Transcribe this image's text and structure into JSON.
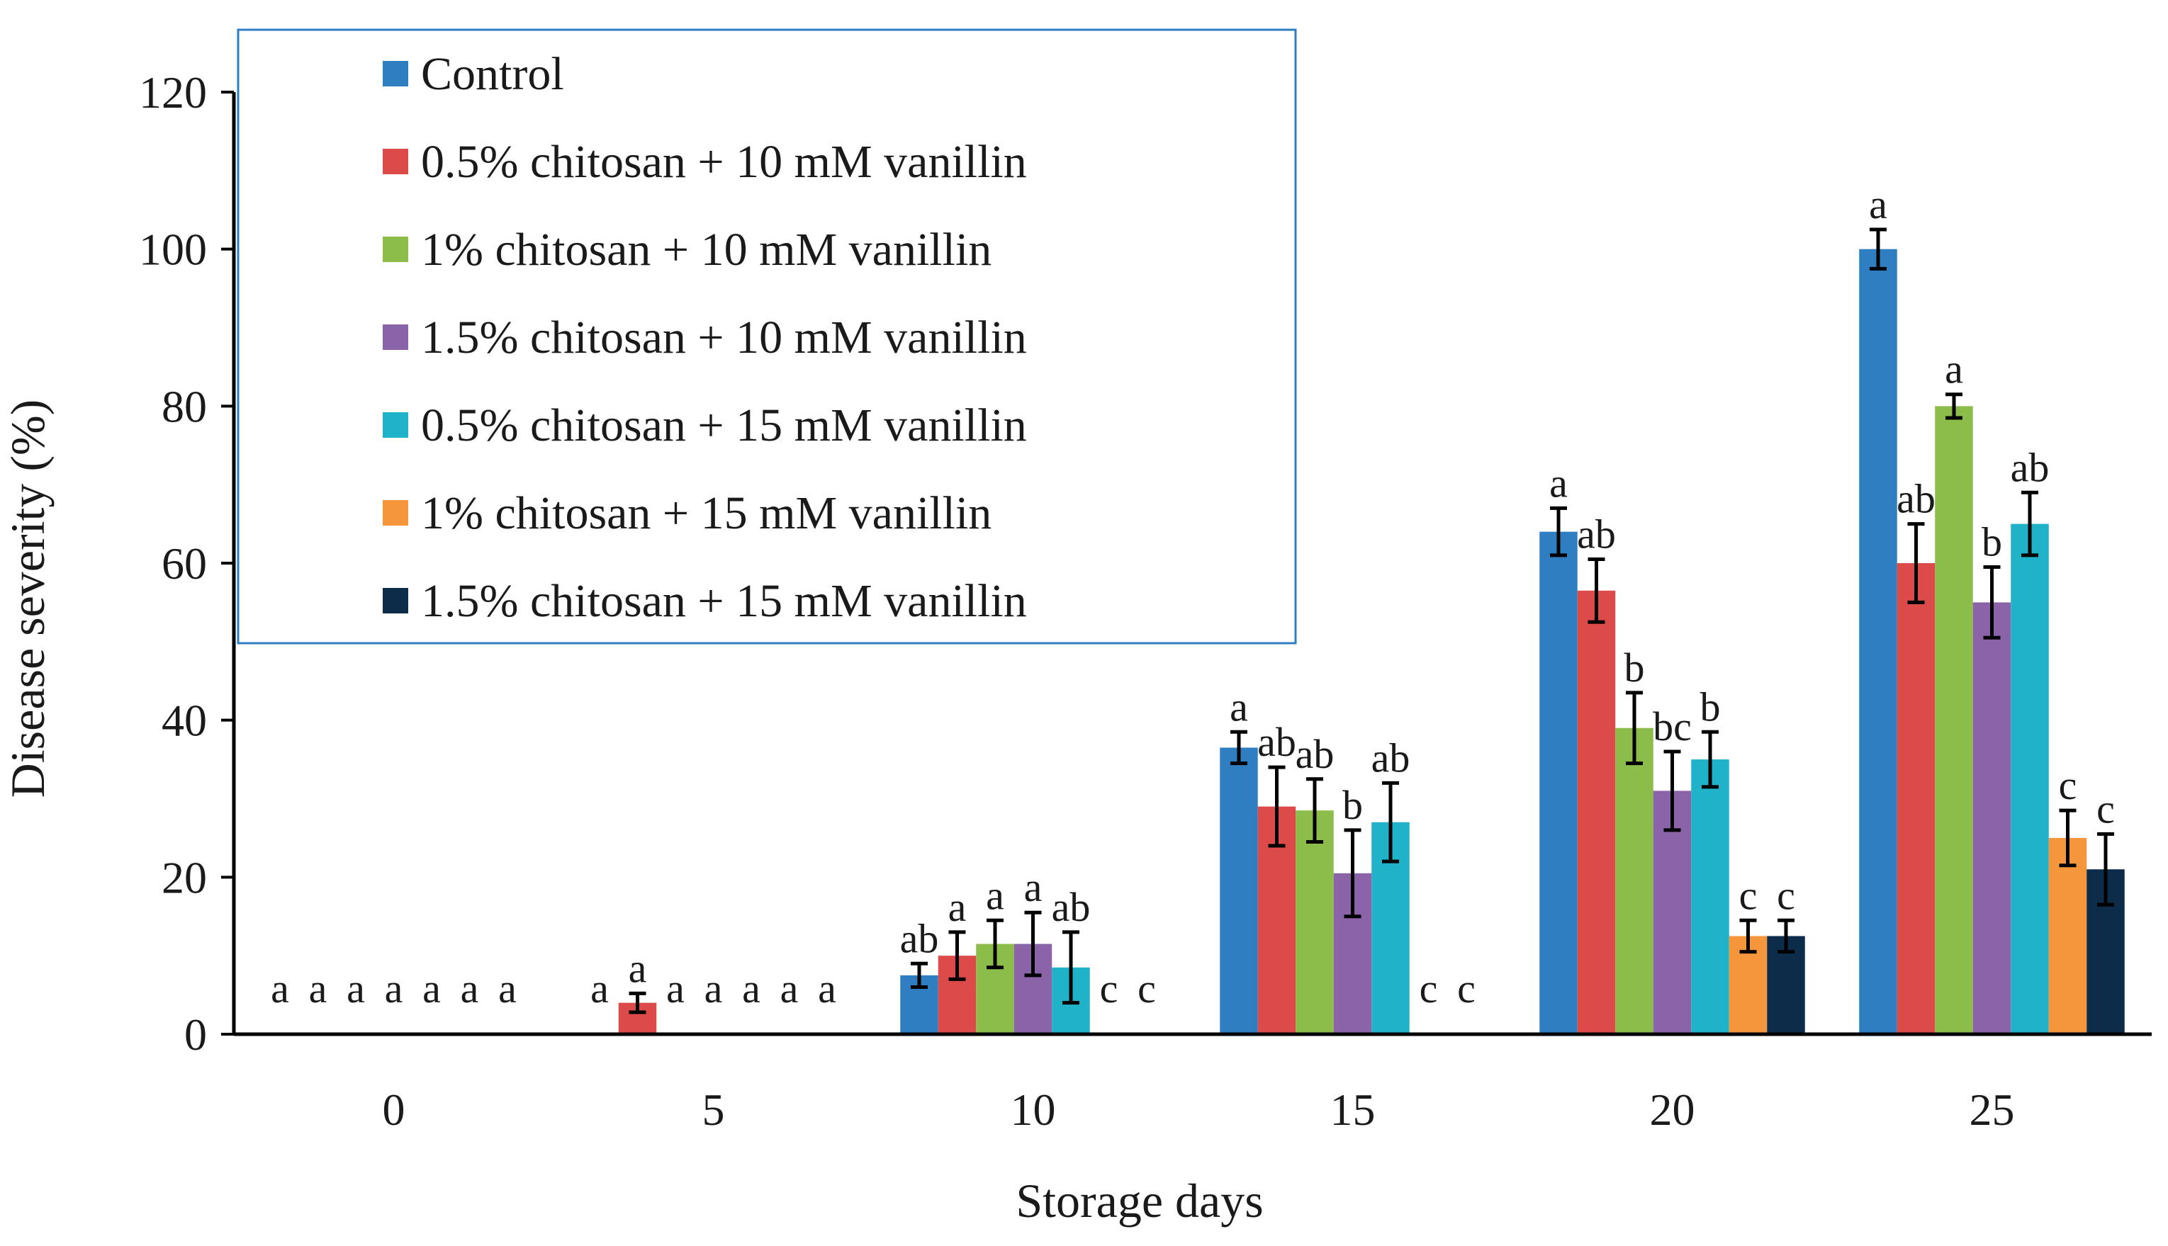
{
  "chart_data": {
    "type": "bar",
    "title": "",
    "xlabel": "Storage days",
    "ylabel": "Disease severity (%)",
    "ylim": [
      0,
      120
    ],
    "yticks": [
      "0",
      "20",
      "40",
      "60",
      "80",
      "100",
      "120"
    ],
    "categories": [
      "0",
      "5",
      "10",
      "15",
      "20",
      "25"
    ],
    "legend_position": "top-left",
    "grid": false,
    "series": [
      {
        "name": "Control",
        "color": "#2e7ec1",
        "values": [
          0,
          0,
          7.5,
          36.5,
          64,
          100
        ],
        "errors": [
          0,
          0,
          1.5,
          2,
          3,
          2.5
        ],
        "letters": [
          "a",
          "a",
          "ab",
          "a",
          "a",
          "a"
        ]
      },
      {
        "name": "0.5% chitosan + 10 mM vanillin",
        "color": "#dc4a4a",
        "values": [
          0,
          4,
          10,
          29,
          56.5,
          60
        ],
        "errors": [
          0,
          1.2,
          3,
          5,
          4,
          5
        ],
        "letters": [
          "a",
          "a",
          "a",
          "ab",
          "ab",
          "ab"
        ]
      },
      {
        "name": "1% chitosan + 10 mM vanillin",
        "color": "#8cbd4b",
        "values": [
          0,
          0,
          11.5,
          28.5,
          39,
          80
        ],
        "errors": [
          0,
          0,
          3,
          4,
          4.5,
          1.5
        ],
        "letters": [
          "a",
          "a",
          "a",
          "ab",
          "b",
          "a"
        ]
      },
      {
        "name": "1.5% chitosan + 10 mM vanillin",
        "color": "#8a63a8",
        "values": [
          0,
          0,
          11.5,
          20.5,
          31,
          55
        ],
        "errors": [
          0,
          0,
          4,
          5.5,
          5,
          4.5
        ],
        "letters": [
          "a",
          "a",
          "a",
          "b",
          "bc",
          "b"
        ]
      },
      {
        "name": "0.5% chitosan + 15 mM vanillin",
        "color": "#1fb2c8",
        "values": [
          0,
          0,
          8.5,
          27,
          35,
          65
        ],
        "errors": [
          0,
          0,
          4.5,
          5,
          3.5,
          4
        ],
        "letters": [
          "a",
          "a",
          "ab",
          "ab",
          "b",
          "ab"
        ]
      },
      {
        "name": "1% chitosan + 15 mM vanillin",
        "color": "#f6963c",
        "values": [
          0,
          0,
          0,
          0,
          12.5,
          25
        ],
        "errors": [
          0,
          0,
          0,
          0,
          2,
          3.5
        ],
        "letters": [
          "a",
          "a",
          "c",
          "c",
          "c",
          "c"
        ]
      },
      {
        "name": "1.5% chitosan + 15 mM vanillin",
        "color": "#0c2c4a",
        "values": [
          0,
          0,
          0,
          0,
          12.5,
          21
        ],
        "errors": [
          0,
          0,
          0,
          0,
          2,
          4.5
        ],
        "letters": [
          "a",
          "a",
          "c",
          "c",
          "c",
          "c"
        ]
      }
    ]
  }
}
